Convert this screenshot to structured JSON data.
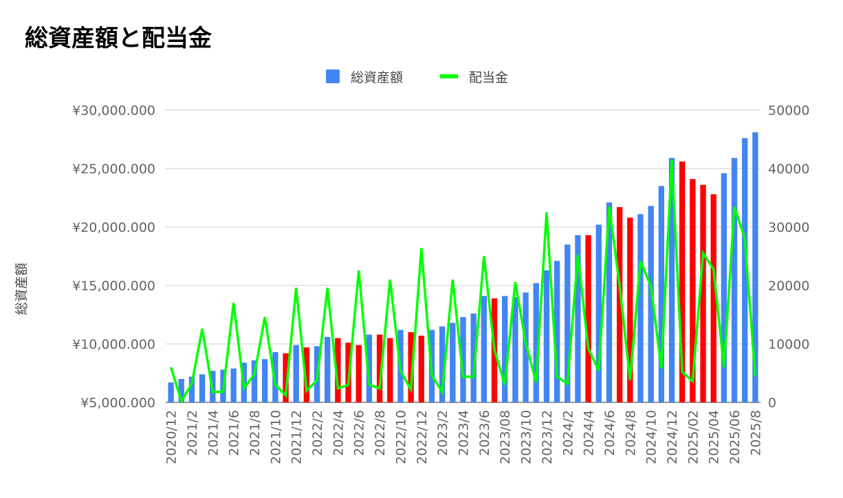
{
  "title": "総資産額と配当金",
  "chart_data": {
    "type": "bar+line",
    "title": "総資産額と配当金",
    "ylabel": "総資産額",
    "y2label": "",
    "legend_position": "top",
    "ylim": [
      5000000,
      30000000
    ],
    "y2lim": [
      0,
      50000
    ],
    "yticks": [
      "¥5,000.000",
      "¥10,000.000",
      "¥15,000.000",
      "¥20,000.000",
      "¥25,000.000",
      "¥30,000.000"
    ],
    "y2ticks": [
      "0",
      "10000",
      "20000",
      "30000",
      "40000",
      "50000"
    ],
    "x_labels_shown": [
      "2020/12",
      "2021/2",
      "2021/4",
      "2021/6",
      "2021/8",
      "2021/10",
      "2021/12",
      "2022/2",
      "2022/4",
      "2022/6",
      "2022/8",
      "2022/10",
      "2022/12",
      "2023/2",
      "2023/4",
      "2023/6",
      "2023/08",
      "2023/10",
      "2023/12",
      "2024/2",
      "2024/4",
      "2024/6",
      "2024/8",
      "2024/10",
      "2024/12",
      "2025/02",
      "2025/04",
      "2025/06",
      "2025/8"
    ],
    "colors": {
      "bar_up": "#4285F4",
      "bar_down": "#FF0000",
      "line": "#00FF00",
      "grid": "#cccccc",
      "axis_text": "#5f6368"
    },
    "series": [
      {
        "name": "総資産額",
        "type": "bar",
        "values": [
          6700000,
          7000000,
          7200000,
          7400000,
          7700000,
          7800000,
          7900000,
          8400000,
          8600000,
          8700000,
          9300000,
          9200000,
          9900000,
          9700000,
          9800000,
          10600000,
          10500000,
          10100000,
          9900000,
          10800000,
          10800000,
          10500000,
          11200000,
          11000000,
          10700000,
          11200000,
          11500000,
          11800000,
          12300000,
          12600000,
          14100000,
          13900000,
          14100000,
          14000000,
          14400000,
          15200000,
          16300000,
          17100000,
          18500000,
          19300000,
          19300000,
          20200000,
          22100000,
          21700000,
          20800000,
          21100000,
          21800000,
          23500000,
          25900000,
          25600000,
          24100000,
          23600000,
          22800000,
          24600000,
          25900000,
          27600000,
          28100000
        ],
        "colors_per_point": [
          "blue",
          "blue",
          "blue",
          "blue",
          "blue",
          "blue",
          "blue",
          "blue",
          "blue",
          "blue",
          "blue",
          "red",
          "blue",
          "red",
          "blue",
          "blue",
          "red",
          "red",
          "red",
          "blue",
          "red",
          "red",
          "blue",
          "red",
          "red",
          "blue",
          "blue",
          "blue",
          "blue",
          "blue",
          "blue",
          "red",
          "blue",
          "blue",
          "blue",
          "blue",
          "blue",
          "blue",
          "blue",
          "blue",
          "red",
          "blue",
          "blue",
          "red",
          "red",
          "blue",
          "blue",
          "blue",
          "blue",
          "red",
          "red",
          "red",
          "red",
          "blue",
          "blue",
          "blue",
          "blue"
        ]
      },
      {
        "name": "配当金",
        "type": "line",
        "axis": "right",
        "values": [
          6000,
          200,
          3200,
          12600,
          1800,
          1800,
          17000,
          2400,
          4800,
          14600,
          3000,
          1200,
          19600,
          2000,
          3800,
          19600,
          2400,
          3000,
          22600,
          3000,
          2400,
          21000,
          5400,
          2200,
          26400,
          4600,
          1800,
          21000,
          4400,
          4400,
          25000,
          9000,
          3000,
          20600,
          10200,
          3400,
          32500,
          4400,
          3200,
          25200,
          9200,
          5400,
          33500,
          20000,
          3800,
          24200,
          19800,
          5800,
          41500,
          5200,
          3600,
          25500,
          22800,
          6000,
          33500,
          28000,
          4400
        ]
      }
    ]
  }
}
